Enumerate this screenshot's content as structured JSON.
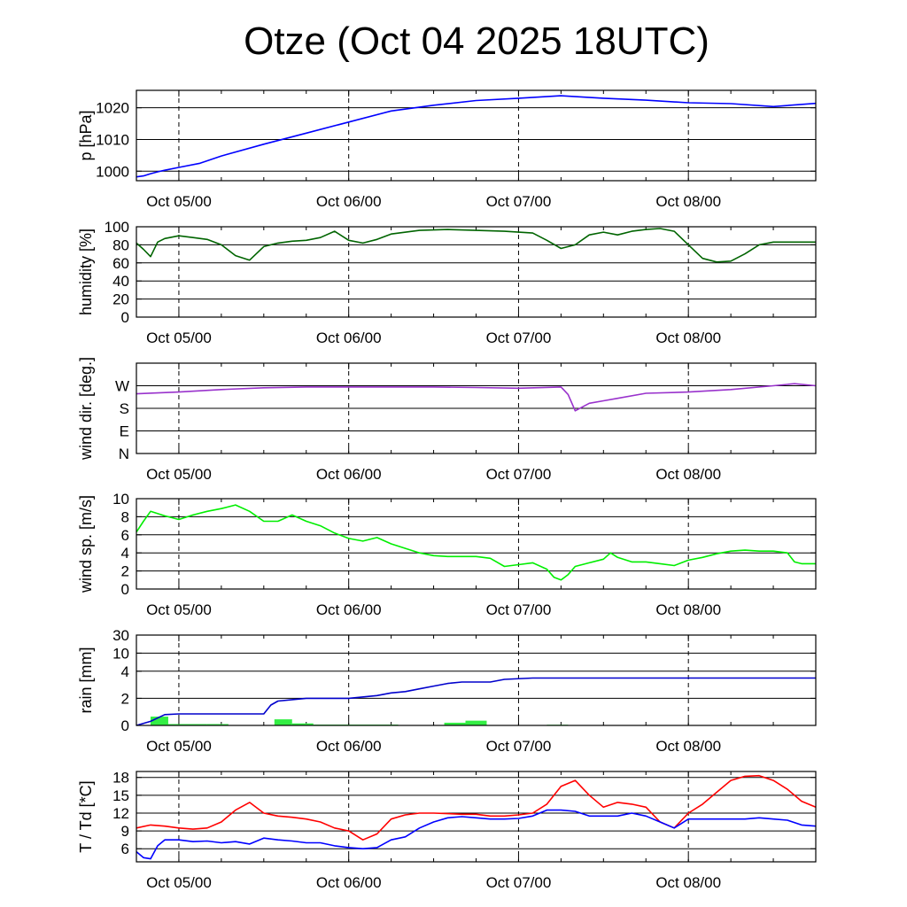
{
  "title": "Otze (Oct 04 2025 18UTC)",
  "x_axis": {
    "start": "Oct 04 18UTC",
    "end": "Oct 08 18UTC",
    "tick_labels": [
      "Oct 05/00",
      "Oct 06/00",
      "Oct 07/00",
      "Oct 08/00"
    ]
  },
  "chart_data": [
    {
      "id": "pressure",
      "type": "line",
      "ylabel": "p [hPa]",
      "ylim": [
        997,
        1025.5
      ],
      "yticks": [
        1000,
        1010,
        1020
      ],
      "ytick_labels": [
        "1000",
        "1010",
        "1020"
      ],
      "color": "#0000ff",
      "series": [
        {
          "x_hours": [
            0,
            1,
            2,
            3,
            4,
            6,
            9,
            12,
            18,
            24,
            30,
            36,
            42,
            48,
            54,
            60,
            66,
            72,
            78,
            84,
            90,
            96
          ],
          "values": [
            998.2,
            998.5,
            999.2,
            999.8,
            1000.3,
            1001.2,
            1002.5,
            1004.8,
            1008.5,
            1012.0,
            1015.5,
            1019.0,
            1020.8,
            1022.3,
            1023.0,
            1023.8,
            1023.0,
            1022.4,
            1021.6,
            1021.3,
            1020.4,
            1021.4
          ]
        }
      ]
    },
    {
      "id": "humidity",
      "type": "line",
      "ylabel": "humidity [%]",
      "ylim": [
        0,
        100
      ],
      "yticks": [
        0,
        20,
        40,
        60,
        80,
        100
      ],
      "ytick_labels": [
        "0",
        "20",
        "40",
        "60",
        "80",
        "100"
      ],
      "color": "#006400",
      "series": [
        {
          "x_hours": [
            0,
            1,
            2,
            3,
            4,
            6,
            8,
            10,
            12,
            14,
            16,
            18,
            20,
            22,
            24,
            26,
            28,
            30,
            32,
            34,
            36,
            40,
            44,
            48,
            52,
            56,
            58,
            60,
            62,
            64,
            66,
            68,
            70,
            72,
            74,
            76,
            78,
            80,
            82,
            84,
            86,
            88,
            90,
            92,
            94,
            96
          ],
          "values": [
            82,
            75,
            67,
            83,
            87,
            90,
            88,
            86,
            80,
            68,
            63,
            78,
            82,
            84,
            85,
            88,
            95,
            85,
            82,
            86,
            92,
            96,
            97,
            96,
            95,
            93,
            85,
            76,
            80,
            91,
            94,
            91,
            95,
            97,
            98,
            95,
            80,
            65,
            61,
            62,
            70,
            80,
            83,
            83,
            83,
            83
          ]
        }
      ]
    },
    {
      "id": "wind_direction",
      "type": "line",
      "ylabel": "wind dir. [deg.]",
      "ylim": [
        0,
        360
      ],
      "yticks": [
        0,
        90,
        180,
        270
      ],
      "ytick_labels": [
        "N",
        "E",
        "S",
        "W"
      ],
      "color": "#9932cc",
      "series": [
        {
          "x_hours": [
            0,
            6,
            12,
            18,
            24,
            30,
            36,
            42,
            48,
            54,
            60,
            61,
            62,
            64,
            66,
            68,
            72,
            78,
            84,
            90,
            93,
            96
          ],
          "values": [
            238,
            245,
            255,
            262,
            265,
            265,
            265,
            265,
            263,
            260,
            265,
            235,
            170,
            200,
            210,
            220,
            240,
            245,
            255,
            270,
            278,
            270
          ]
        }
      ]
    },
    {
      "id": "wind_speed",
      "type": "line",
      "ylabel": "wind sp. [m/s]",
      "ylim": [
        0,
        10
      ],
      "yticks": [
        0,
        2,
        4,
        6,
        8,
        10
      ],
      "ytick_labels": [
        "0",
        "2",
        "4",
        "6",
        "8",
        "10"
      ],
      "color": "#00ee00",
      "series": [
        {
          "x_hours": [
            0,
            1,
            2,
            4,
            6,
            8,
            10,
            12,
            14,
            16,
            18,
            20,
            22,
            24,
            26,
            28,
            30,
            32,
            34,
            36,
            38,
            40,
            42,
            44,
            46,
            48,
            50,
            52,
            54,
            56,
            58,
            59,
            60,
            61,
            62,
            64,
            66,
            67,
            68,
            70,
            72,
            74,
            76,
            78,
            80,
            82,
            84,
            86,
            88,
            90,
            92,
            93,
            94,
            96
          ],
          "values": [
            6.3,
            7.5,
            8.6,
            8.1,
            7.7,
            8.2,
            8.6,
            8.9,
            9.3,
            8.6,
            7.5,
            7.5,
            8.2,
            7.5,
            7.0,
            6.2,
            5.6,
            5.3,
            5.7,
            5.0,
            4.5,
            4.0,
            3.7,
            3.6,
            3.6,
            3.6,
            3.4,
            2.5,
            2.7,
            2.9,
            2.2,
            1.3,
            1.0,
            1.6,
            2.5,
            2.9,
            3.3,
            4.0,
            3.5,
            3.0,
            3.0,
            2.8,
            2.6,
            3.2,
            3.5,
            3.9,
            4.2,
            4.3,
            4.2,
            4.2,
            4.0,
            3.0,
            2.8,
            2.8
          ]
        }
      ]
    },
    {
      "id": "rain",
      "type": "bar+line",
      "ylabel": "rain [mm]",
      "yticks": [
        0,
        2,
        4,
        10,
        30
      ],
      "ytick_labels": [
        "0",
        "2",
        "4",
        "10",
        "30"
      ],
      "accumulated_color": "#0000cc",
      "bar_color": "#33ee44",
      "accumulated": {
        "x_hours": [
          0,
          2,
          4,
          6,
          10,
          14,
          18,
          19,
          20,
          22,
          24,
          26,
          30,
          34,
          36,
          38,
          40,
          42,
          44,
          46,
          48,
          50,
          52,
          56,
          60,
          66,
          72,
          78,
          84,
          90,
          96
        ],
        "values": [
          0,
          0.3,
          0.8,
          0.85,
          0.85,
          0.85,
          0.85,
          1.5,
          1.8,
          1.9,
          2.0,
          2.0,
          2.0,
          2.2,
          2.4,
          2.5,
          2.7,
          2.9,
          3.1,
          3.2,
          3.2,
          3.2,
          3.4,
          3.5,
          3.5,
          3.5,
          3.5,
          3.5,
          3.5,
          3.5,
          3.5
        ]
      },
      "bars": [
        {
          "x_start": 2,
          "x_end": 4.5,
          "value": 0.65
        },
        {
          "x_start": 4.5,
          "x_end": 10,
          "value": 0.1
        },
        {
          "x_start": 10,
          "x_end": 13,
          "value": 0.1
        },
        {
          "x_start": 19.5,
          "x_end": 22,
          "value": 0.45
        },
        {
          "x_start": 22,
          "x_end": 25,
          "value": 0.15
        },
        {
          "x_start": 25,
          "x_end": 37,
          "value": 0.06
        },
        {
          "x_start": 43.5,
          "x_end": 46.5,
          "value": 0.2
        },
        {
          "x_start": 46.5,
          "x_end": 49.5,
          "value": 0.35
        },
        {
          "x_start": 58,
          "x_end": 61,
          "value": 0.05
        }
      ]
    },
    {
      "id": "temperature",
      "type": "line",
      "ylabel": "T / Td [*C]",
      "ylim": [
        3.8,
        19
      ],
      "yticks": [
        6,
        9,
        12,
        15,
        18
      ],
      "ytick_labels": [
        "6",
        "9",
        "12",
        "15",
        "18"
      ],
      "series": [
        {
          "id": "temperature",
          "color": "#ff0000",
          "x_hours": [
            0,
            2,
            4,
            6,
            8,
            10,
            12,
            14,
            16,
            18,
            20,
            22,
            24,
            26,
            28,
            30,
            32,
            34,
            36,
            38,
            40,
            42,
            44,
            46,
            48,
            50,
            52,
            54,
            56,
            58,
            60,
            62,
            64,
            66,
            68,
            70,
            72,
            74,
            76,
            78,
            80,
            82,
            84,
            86,
            88,
            90,
            92,
            94,
            96
          ],
          "values": [
            9.5,
            10.0,
            9.8,
            9.5,
            9.3,
            9.5,
            10.5,
            12.5,
            13.8,
            12.0,
            11.5,
            11.3,
            11.0,
            10.5,
            9.5,
            9.0,
            7.5,
            8.5,
            11.0,
            11.7,
            12.0,
            12.0,
            11.9,
            11.8,
            11.8,
            11.5,
            11.5,
            11.7,
            12.0,
            13.5,
            16.5,
            17.5,
            15.0,
            13.0,
            13.8,
            13.5,
            13.0,
            10.5,
            9.5,
            12.0,
            13.5,
            15.5,
            17.5,
            18.2,
            18.3,
            17.5,
            16.0,
            14.0,
            13.0
          ]
        },
        {
          "id": "dewpoint",
          "color": "#0000ff",
          "x_hours": [
            0,
            1,
            2,
            3,
            4,
            6,
            8,
            10,
            12,
            14,
            16,
            18,
            20,
            22,
            24,
            26,
            28,
            30,
            32,
            34,
            36,
            38,
            40,
            42,
            44,
            46,
            48,
            50,
            52,
            54,
            56,
            58,
            60,
            62,
            64,
            66,
            68,
            70,
            72,
            74,
            76,
            78,
            80,
            82,
            84,
            86,
            88,
            90,
            92,
            94,
            96
          ],
          "values": [
            5.5,
            4.5,
            4.3,
            6.5,
            7.5,
            7.5,
            7.2,
            7.3,
            7.0,
            7.2,
            6.8,
            7.8,
            7.5,
            7.3,
            7.0,
            7.0,
            6.5,
            6.2,
            6.0,
            6.2,
            7.5,
            8.0,
            9.5,
            10.5,
            11.2,
            11.4,
            11.2,
            11.0,
            11.0,
            11.1,
            11.5,
            12.5,
            12.5,
            12.3,
            11.5,
            11.5,
            11.5,
            12.0,
            11.5,
            10.5,
            9.5,
            11.0,
            11.0,
            11.0,
            11.0,
            11.0,
            11.2,
            11.0,
            10.8,
            10.0,
            9.8
          ]
        }
      ]
    }
  ]
}
